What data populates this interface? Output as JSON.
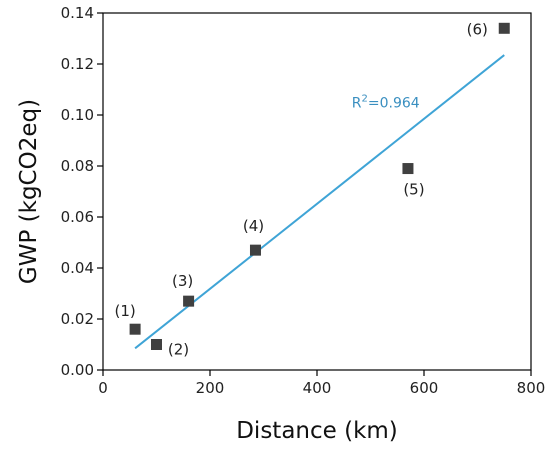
{
  "chart_data": {
    "type": "scatter",
    "title": "",
    "xlabel": "Distance (km)",
    "ylabel": "GWP (kgCO2eq)",
    "xlim": [
      0,
      800
    ],
    "ylim": [
      0,
      0.14
    ],
    "xticks": [
      0,
      200,
      400,
      600,
      800
    ],
    "yticks": [
      0.0,
      0.02,
      0.04,
      0.06,
      0.08,
      0.1,
      0.12,
      0.14
    ],
    "xtick_labels": [
      "0",
      "200",
      "400",
      "600",
      "800"
    ],
    "ytick_labels": [
      "0.00",
      "0.02",
      "0.04",
      "0.06",
      "0.08",
      "0.10",
      "0.12",
      "0.14"
    ],
    "grid": false,
    "legend": "none",
    "series": [
      {
        "marker": "square",
        "color": "#404040",
        "points": [
          {
            "label": "(1)",
            "x": 60,
            "y": 0.016
          },
          {
            "label": "(2)",
            "x": 100,
            "y": 0.01
          },
          {
            "label": "(3)",
            "x": 160,
            "y": 0.027
          },
          {
            "label": "(4)",
            "x": 285,
            "y": 0.047
          },
          {
            "label": "(5)",
            "x": 570,
            "y": 0.079
          },
          {
            "label": "(6)",
            "x": 750,
            "y": 0.134
          }
        ]
      }
    ],
    "trendline": {
      "type": "linear",
      "color": "#3fa4d6",
      "x_start": 60,
      "y_start": 0.0085,
      "x_end": 750,
      "y_end": 0.1235
    },
    "annotation": {
      "prefix": "R",
      "superscript": "2",
      "suffix": "=0.964",
      "color": "#3a8fc0",
      "x": 465,
      "y": 0.103
    }
  }
}
